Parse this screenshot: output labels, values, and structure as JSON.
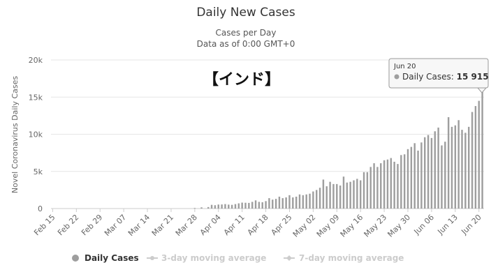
{
  "chart_data": {
    "type": "bar",
    "title": "Daily New Cases",
    "subtitle_lines": [
      "Cases per Day",
      "Data as of 0:00 GMT+0"
    ],
    "ylabel": "Novel Coronavirus Daily Cases",
    "ylim": [
      0,
      20000
    ],
    "yticks": [
      0,
      5000,
      10000,
      15000,
      20000
    ],
    "ytick_labels": [
      "0",
      "5k",
      "10k",
      "15k",
      "20k"
    ],
    "annotation": "【インド】",
    "start_date": "Feb 15",
    "end_date": "Jun 20",
    "xtick_labels": [
      "Feb 15",
      "Feb 22",
      "Feb 29",
      "Mar 07",
      "Mar 14",
      "Mar 21",
      "Mar 28",
      "Apr 04",
      "Apr 11",
      "Apr 18",
      "Apr 25",
      "May 02",
      "May 09",
      "May 16",
      "May 23",
      "May 30",
      "Jun 06",
      "Jun 13",
      "Jun 20"
    ],
    "series": [
      {
        "name": "Daily Cases",
        "color": "#9e9e9e",
        "values": [
          0,
          0,
          0,
          0,
          0,
          0,
          0,
          0,
          0,
          0,
          0,
          0,
          0,
          0,
          0,
          0,
          0,
          0,
          0,
          0,
          0,
          0,
          0,
          0,
          0,
          0,
          0,
          0,
          0,
          0,
          0,
          0,
          0,
          0,
          0,
          0,
          0,
          0,
          0,
          0,
          0,
          0,
          77,
          0,
          160,
          0,
          200,
          500,
          450,
          540,
          550,
          600,
          530,
          500,
          600,
          700,
          800,
          780,
          760,
          900,
          1100,
          900,
          850,
          1000,
          1400,
          1200,
          1300,
          1600,
          1400,
          1500,
          1800,
          1500,
          1600,
          1900,
          1800,
          1900,
          2000,
          2300,
          2500,
          2800,
          3900,
          3000,
          3600,
          3300,
          3300,
          3100,
          4300,
          3500,
          3600,
          3800,
          4000,
          3800,
          4900,
          4900,
          5600,
          6100,
          5600,
          6100,
          6500,
          6600,
          6800,
          6300,
          6000,
          7200,
          7300,
          8000,
          8300,
          8800,
          7800,
          8900,
          9600,
          9900,
          9500,
          10400,
          10900,
          8500,
          9000,
          12300,
          11000,
          11200,
          11900,
          10600,
          10200,
          11000,
          13000,
          13800,
          14500,
          15915
        ]
      },
      {
        "name": "3-day moving average",
        "color": "#cccccc",
        "visible": false
      },
      {
        "name": "7-day moving average",
        "color": "#cccccc",
        "visible": false
      }
    ],
    "tooltip": {
      "date": "Jun 20",
      "series_name": "Daily Cases",
      "value_label": "15 915",
      "value": 15915
    },
    "legend_position": "bottom-center"
  }
}
